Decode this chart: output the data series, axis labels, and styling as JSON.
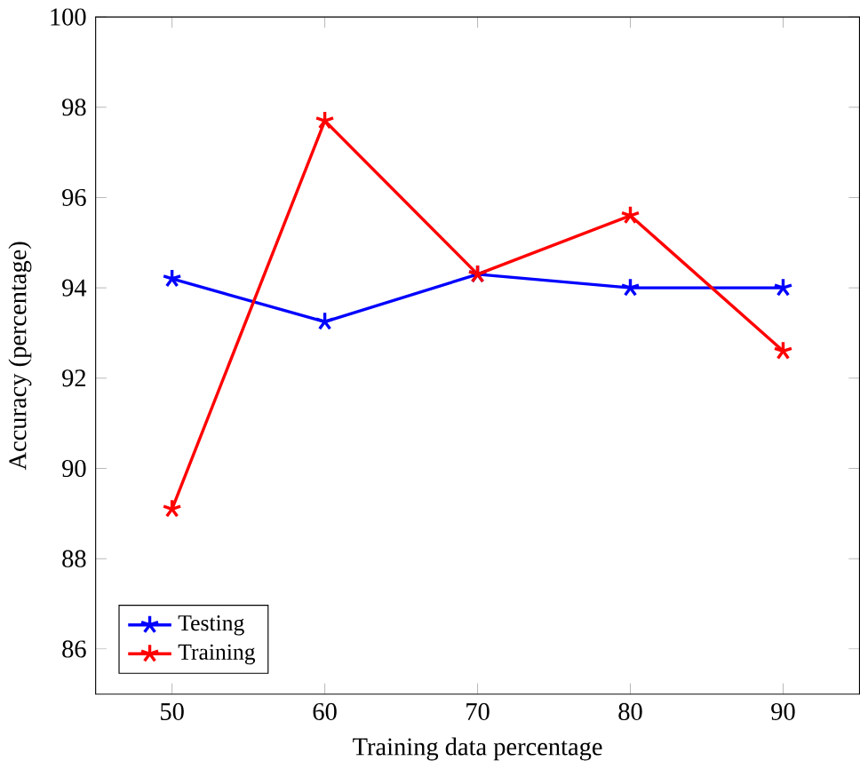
{
  "chart_data": {
    "type": "line",
    "xlabel": "Training data percentage",
    "ylabel": "Accuracy (percentage)",
    "x": [
      50,
      60,
      70,
      80,
      90
    ],
    "series": [
      {
        "name": "Testing",
        "color": "#0000ff",
        "values": [
          94.2,
          93.25,
          94.3,
          94.0,
          94.0
        ]
      },
      {
        "name": "Training",
        "color": "#ff0000",
        "values": [
          89.1,
          97.7,
          94.3,
          95.6,
          92.6
        ]
      }
    ],
    "xlim": [
      45,
      95
    ],
    "ylim": [
      85,
      100
    ],
    "xticks": [
      50,
      60,
      70,
      80,
      90
    ],
    "yticks": [
      86,
      88,
      90,
      92,
      94,
      96,
      98,
      100
    ],
    "legend": "bottom left",
    "marker": "cross",
    "line_style": "solid",
    "grid": false
  }
}
